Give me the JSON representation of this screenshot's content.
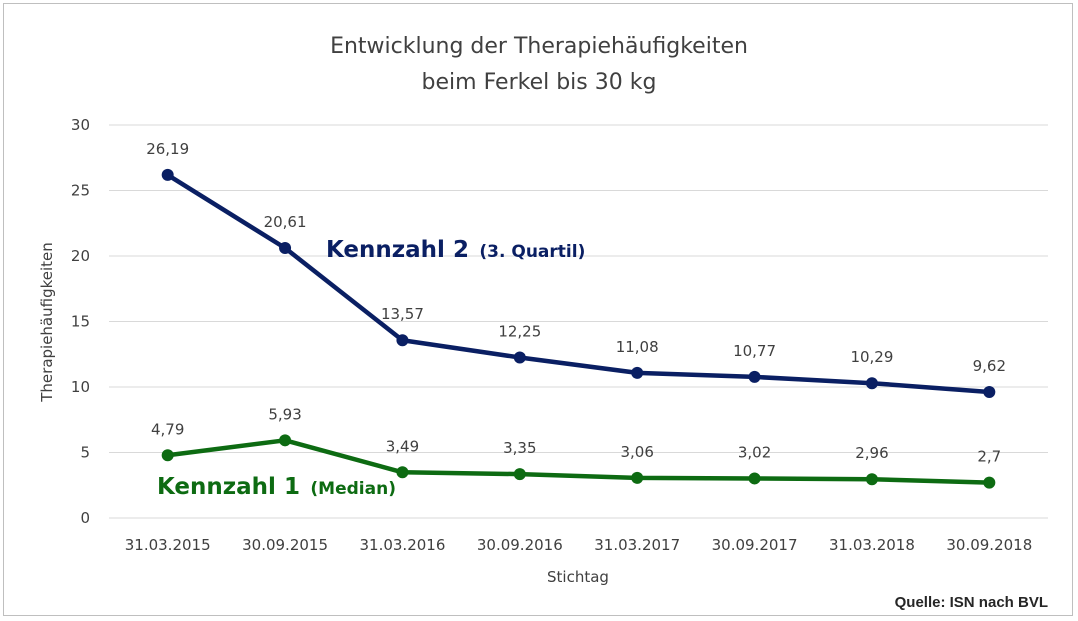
{
  "chart_data": {
    "type": "line",
    "title": [
      "Entwicklung der Therapiehäufigkeiten",
      "beim Ferkel bis 30 kg"
    ],
    "xlabel": "Stichtag",
    "ylabel": "Therapiehäufigkeiten",
    "ylim": [
      0,
      30
    ],
    "yticks": [
      "0",
      "5",
      "10",
      "15",
      "20",
      "25",
      "30"
    ],
    "grid": true,
    "categories": [
      "31.03.2015",
      "30.09.2015",
      "31.03.2016",
      "30.09.2016",
      "31.03.2017",
      "30.09.2017",
      "31.03.2018",
      "30.09.2018"
    ],
    "series": [
      {
        "name": "Kennzahl 2",
        "name_suffix": "(3. Quartil)",
        "color": "#0a1f63",
        "values": [
          26.19,
          20.61,
          13.57,
          12.25,
          11.08,
          10.77,
          10.29,
          9.62
        ],
        "labels": [
          "26,19",
          "20,61",
          "13,57",
          "12,25",
          "11,08",
          "10,77",
          "10,29",
          "9,62"
        ]
      },
      {
        "name": "Kennzahl 1",
        "name_suffix": "(Median)",
        "color": "#0d6b12",
        "values": [
          4.79,
          5.93,
          3.49,
          3.35,
          3.06,
          3.02,
          2.96,
          2.7
        ],
        "labels": [
          "4,79",
          "5,93",
          "3,49",
          "3,35",
          "3,06",
          "3,02",
          "2,96",
          "2,7"
        ]
      }
    ],
    "source": "Quelle: ISN nach BVL"
  }
}
